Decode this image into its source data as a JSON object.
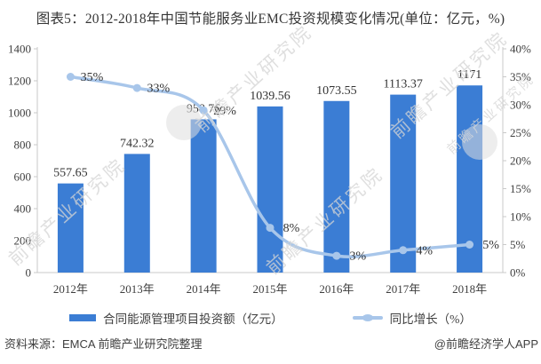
{
  "title": "图表5：2012-2018年中国节能服务业EMC投资规模变化情况(单位：亿元，%)",
  "chart_data": {
    "type": "bar",
    "combo": "bar-line",
    "title": "图表5：2012-2018年中国节能服务业EMC投资规模变化情况(单位：亿元，%)",
    "categories": [
      "2012年",
      "2013年",
      "2014年",
      "2015年",
      "2016年",
      "2017年",
      "2018年"
    ],
    "series": [
      {
        "name": "合同能源管理项目投资额（亿元）",
        "type": "bar",
        "axis": "left",
        "color": "#3B7DD4",
        "values": [
          557.65,
          742.32,
          958.76,
          1039.56,
          1073.55,
          1113.37,
          1171
        ],
        "labels": [
          "557.65",
          "742.32",
          "958.76",
          "1039.56",
          "1073.55",
          "1113.37",
          "1171"
        ]
      },
      {
        "name": "同比增长（%）",
        "type": "line",
        "axis": "right",
        "color": "#A8C6EA",
        "values": [
          35,
          33,
          29,
          8,
          3,
          4,
          5
        ],
        "labels": [
          "35%",
          "33%",
          "29%",
          "8%",
          "3%",
          "4%",
          "5%"
        ]
      }
    ],
    "left_axis": {
      "min": 0,
      "max": 1400,
      "step": 200,
      "tick_labels": [
        "0",
        "200",
        "400",
        "600",
        "800",
        "1000",
        "1200",
        "1400"
      ]
    },
    "right_axis": {
      "min": 0,
      "max": 40,
      "step": 5,
      "tick_labels": [
        "0%",
        "5%",
        "10%",
        "15%",
        "20%",
        "25%",
        "30%",
        "35%",
        "40%"
      ]
    },
    "grid": false,
    "legend_position": "bottom"
  },
  "watermark": {
    "text": "前瞻产业研究院"
  },
  "footer": {
    "source": "资料来源：EMCA 前瞻产业研究院整理",
    "attribution": "@前瞻经济学人APP"
  },
  "colors": {
    "bar": "#3B7DD4",
    "line": "#A8C6EA",
    "axis": "#C9C9C9",
    "label": "#333333",
    "tick_text": "#3F3F3F"
  }
}
